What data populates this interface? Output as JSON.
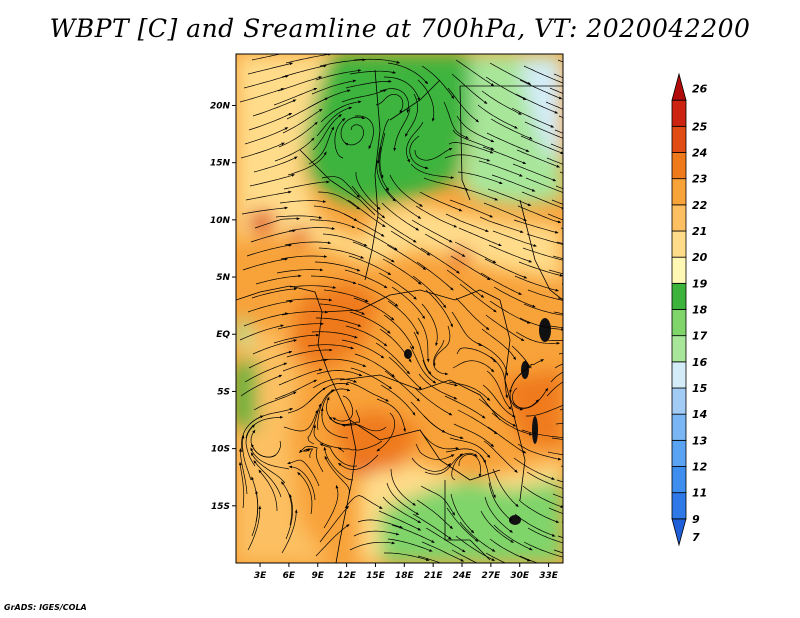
{
  "title": "WBPT [C] and Sreamline at 700hPa, VT: 2020042200",
  "credit": "GrADS: IGES/COLA",
  "map": {
    "lat_labels": [
      "20N",
      "15N",
      "10N",
      "5N",
      "EQ",
      "5S",
      "10S",
      "15S"
    ],
    "lat_values": [
      20,
      15,
      10,
      5,
      0,
      -5,
      -10,
      -15
    ],
    "lon_labels": [
      "3E",
      "6E",
      "9E",
      "12E",
      "15E",
      "18E",
      "21E",
      "24E",
      "27E",
      "30E",
      "33E"
    ],
    "lon_values": [
      3,
      6,
      9,
      12,
      15,
      18,
      21,
      24,
      27,
      30,
      33
    ],
    "lat_range": [
      -20,
      24.5
    ],
    "lon_range": [
      0.5,
      34.5
    ]
  },
  "legend": {
    "levels": [
      "7",
      "9",
      "11",
      "12",
      "13",
      "14",
      "15",
      "16",
      "17",
      "18",
      "19",
      "20",
      "21",
      "22",
      "23",
      "24",
      "25",
      "26"
    ],
    "colors": [
      "#1f5fd8",
      "#2e78e8",
      "#3e8ef0",
      "#5aa2f2",
      "#7ab6f4",
      "#a2cbf5",
      "#d4ecf8",
      "#a8e69a",
      "#7fd46a",
      "#3cb43c",
      "#fff7b4",
      "#ffdc8a",
      "#fcc062",
      "#f8a23a",
      "#ef7a1c",
      "#e04c14",
      "#cc2410",
      "#b00a0a"
    ]
  },
  "colors": {
    "green_dark": "#3cb43c",
    "green_mid": "#7fd46a",
    "green_light": "#a8e69a",
    "pale_blue": "#d4ecf8",
    "yellow": "#ffdc8a",
    "orange_light": "#fcc062",
    "orange": "#f8a23a",
    "orange_dark": "#ef7a1c",
    "red_orange": "#e04c14"
  }
}
